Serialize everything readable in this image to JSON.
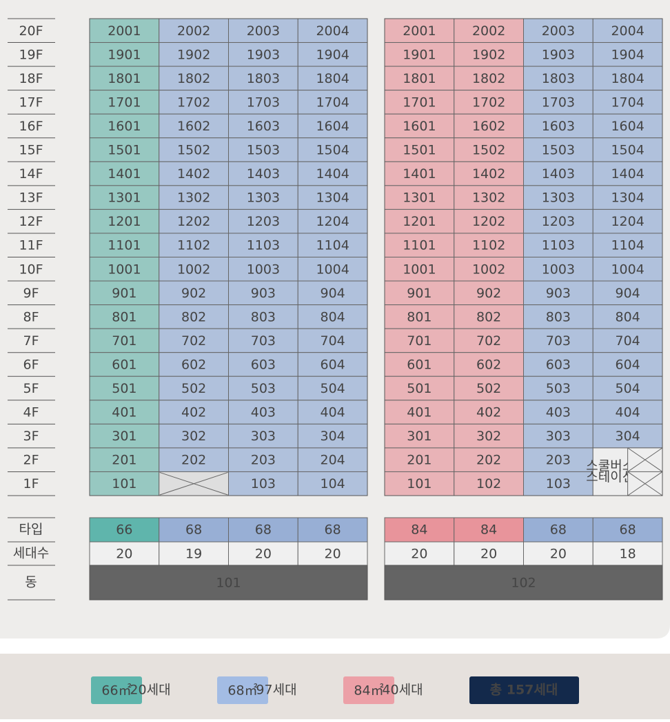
{
  "floors": [
    "20F",
    "19F",
    "18F",
    "17F",
    "16F",
    "15F",
    "14F",
    "13F",
    "12F",
    "11F",
    "10F",
    "9F",
    "8F",
    "7F",
    "6F",
    "5F",
    "4F",
    "3F",
    "2F",
    "1F"
  ],
  "row_labels": {
    "type": "타입",
    "households": "세대수",
    "building": "동"
  },
  "buildings": [
    {
      "name": "101",
      "column_colors": [
        "#97c8c1",
        "#b0c1dc",
        "#b0c1dc",
        "#b0c1dc"
      ],
      "units": [
        [
          2001,
          2002,
          2003,
          2004
        ],
        [
          1901,
          1902,
          1903,
          1904
        ],
        [
          1801,
          1802,
          1803,
          1804
        ],
        [
          1701,
          1702,
          1703,
          1704
        ],
        [
          1601,
          1602,
          1603,
          1604
        ],
        [
          1501,
          1502,
          1503,
          1504
        ],
        [
          1401,
          1402,
          1403,
          1404
        ],
        [
          1301,
          1302,
          1303,
          1304
        ],
        [
          1201,
          1202,
          1203,
          1204
        ],
        [
          1101,
          1102,
          1103,
          1104
        ],
        [
          1001,
          1002,
          1003,
          1004
        ],
        [
          901,
          902,
          903,
          904
        ],
        [
          801,
          802,
          803,
          804
        ],
        [
          701,
          702,
          703,
          704
        ],
        [
          601,
          602,
          603,
          604
        ],
        [
          501,
          502,
          503,
          504
        ],
        [
          401,
          402,
          403,
          404
        ],
        [
          301,
          302,
          303,
          304
        ],
        [
          201,
          202,
          203,
          204
        ],
        [
          101,
          null,
          103,
          104
        ]
      ],
      "types": [
        66,
        68,
        68,
        68
      ],
      "type_colors": [
        "#5fb5ac",
        "#98afd5",
        "#98afd5",
        "#98afd5"
      ],
      "households": [
        20,
        19,
        20,
        20
      ]
    },
    {
      "name": "102",
      "column_colors": [
        "#e9b3b7",
        "#e9b3b7",
        "#b0c1dc",
        "#b0c1dc"
      ],
      "units": [
        [
          2001,
          2002,
          2003,
          2004
        ],
        [
          1901,
          1902,
          1903,
          1904
        ],
        [
          1801,
          1802,
          1803,
          1804
        ],
        [
          1701,
          1702,
          1703,
          1704
        ],
        [
          1601,
          1602,
          1603,
          1604
        ],
        [
          1501,
          1502,
          1503,
          1504
        ],
        [
          1401,
          1402,
          1403,
          1404
        ],
        [
          1301,
          1302,
          1303,
          1304
        ],
        [
          1201,
          1202,
          1203,
          1204
        ],
        [
          1101,
          1102,
          1103,
          1104
        ],
        [
          1001,
          1002,
          1003,
          1004
        ],
        [
          901,
          902,
          903,
          904
        ],
        [
          801,
          802,
          803,
          804
        ],
        [
          701,
          702,
          703,
          704
        ],
        [
          601,
          602,
          603,
          604
        ],
        [
          501,
          502,
          503,
          504
        ],
        [
          401,
          402,
          403,
          404
        ],
        [
          301,
          302,
          303,
          304
        ],
        [
          201,
          202,
          203,
          null
        ],
        [
          101,
          102,
          103,
          null
        ]
      ],
      "special_label": [
        "스쿨버스",
        "스테이션"
      ],
      "types": [
        84,
        84,
        68,
        68
      ],
      "type_colors": [
        "#e8949b",
        "#e8949b",
        "#98afd5",
        "#98afd5"
      ],
      "households": [
        20,
        20,
        20,
        18
      ]
    }
  ],
  "legend": [
    {
      "label": "66㎡",
      "count": "20세대",
      "color": "#5fb5ac"
    },
    {
      "label": "68㎡",
      "count": "97세대",
      "color": "#a3bce4"
    },
    {
      "label": "84㎡",
      "count": "40세대",
      "color": "#eca0a7"
    }
  ],
  "total": "총 157세대"
}
